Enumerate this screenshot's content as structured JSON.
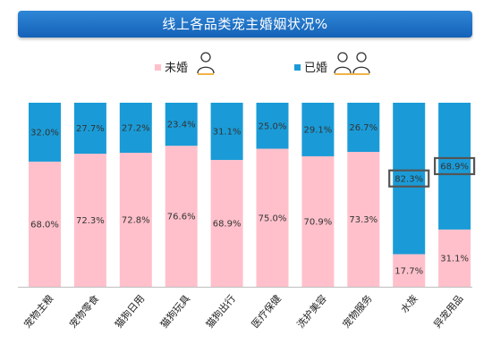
{
  "chart_data": {
    "type": "bar",
    "title": "线上各品类宠主婚姻状况%",
    "categories": [
      "宠物主粮",
      "宠物零食",
      "猫狗日用",
      "猫狗玩具",
      "猫狗出行",
      "医疗保健",
      "洗护美容",
      "宠物服务",
      "水族",
      "异宠用品"
    ],
    "series": [
      {
        "name": "未婚",
        "color": "#ffc0cb",
        "values": [
          68.0,
          72.3,
          72.8,
          76.6,
          68.9,
          75.0,
          70.9,
          73.3,
          17.7,
          31.1
        ],
        "labels": [
          "68.0%",
          "72.3%",
          "72.8%",
          "76.6%",
          "68.9%",
          "75.0%",
          "70.9%",
          "73.3%",
          "17.7%",
          "31.1%"
        ]
      },
      {
        "name": "已婚",
        "color": "#1a9bd7",
        "values": [
          32.0,
          27.7,
          27.2,
          23.4,
          31.1,
          25.0,
          29.1,
          26.7,
          82.3,
          68.9
        ],
        "labels": [
          "32.0%",
          "27.7%",
          "27.2%",
          "23.4%",
          "31.1%",
          "25.0%",
          "29.1%",
          "26.7%",
          "82.3%",
          "68.9%"
        ]
      }
    ],
    "stacked": true,
    "ylim": [
      0,
      100
    ],
    "legend_position": "top-center",
    "highlighted": [
      {
        "category": "水族",
        "series": "已婚"
      },
      {
        "category": "异宠用品",
        "series": "已婚"
      }
    ]
  },
  "legend": {
    "unmarried_label": "未婚",
    "married_label": "已婚",
    "unmarried_icon": "single-person-icon",
    "married_icon": "couple-icon"
  }
}
